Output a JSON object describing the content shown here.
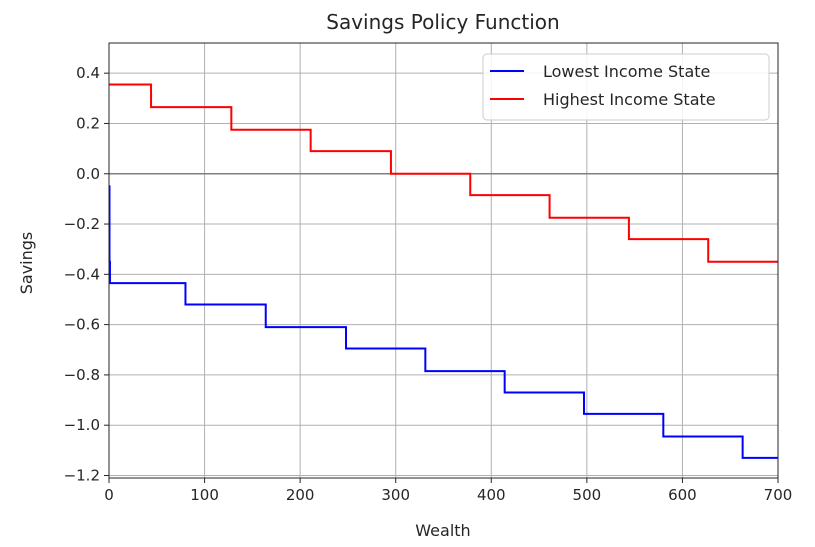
{
  "chart_data": {
    "type": "line",
    "title": "Savings Policy Function",
    "xlabel": "Wealth",
    "ylabel": "Savings",
    "xlim": [
      0,
      700
    ],
    "ylim": [
      -1.21,
      0.52
    ],
    "xticks": [
      0,
      100,
      200,
      300,
      400,
      500,
      600,
      700
    ],
    "xtick_labels": [
      "0",
      "100",
      "200",
      "300",
      "400",
      "500",
      "600",
      "700"
    ],
    "yticks": [
      0.4,
      0.2,
      0.0,
      -0.2,
      -0.4,
      -0.6,
      -0.8,
      -1.0,
      -1.2
    ],
    "ytick_labels": [
      "0.4",
      "0.2",
      "0.0",
      "−0.2",
      "−0.4",
      "−0.6",
      "−0.8",
      "−1.0",
      "−1.2"
    ],
    "grid": true,
    "legend_position": "top-right",
    "reference_line": {
      "y": 0.0,
      "color": "#808080"
    },
    "series": [
      {
        "name": "Lowest Income State",
        "color": "#0000ff",
        "step": "post",
        "x": [
          0,
          0.5,
          1,
          80,
          164,
          248,
          331,
          414,
          497,
          580,
          663,
          700
        ],
        "y": [
          -0.05,
          -0.35,
          -0.435,
          -0.52,
          -0.61,
          -0.695,
          -0.785,
          -0.87,
          -0.955,
          -1.045,
          -1.13,
          -1.13
        ]
      },
      {
        "name": "Highest Income State",
        "color": "#ff0000",
        "step": "post",
        "x": [
          0,
          44,
          128,
          211,
          295,
          378,
          461,
          544,
          627,
          700
        ],
        "y": [
          0.355,
          0.265,
          0.175,
          0.09,
          0.0,
          -0.085,
          -0.175,
          -0.26,
          -0.35,
          -0.35
        ]
      }
    ]
  }
}
